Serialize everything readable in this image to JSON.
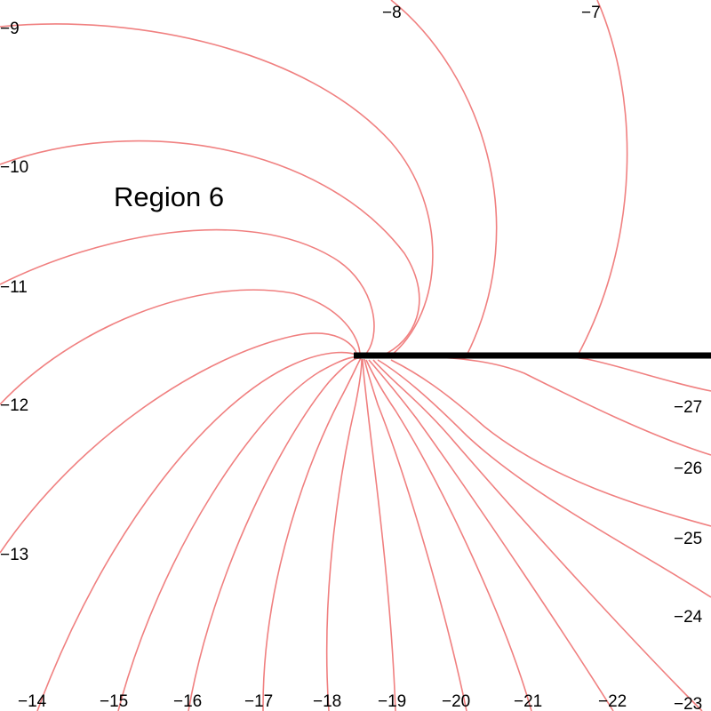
{
  "diagram": {
    "region_label": "Region 6",
    "curve_color": "#f08080",
    "cut_color": "#000000",
    "labels": [
      {
        "id": "c-9",
        "text": "−9"
      },
      {
        "id": "c-8",
        "text": "−8"
      },
      {
        "id": "c-7",
        "text": "−7"
      },
      {
        "id": "c-10",
        "text": "−10"
      },
      {
        "id": "c-11",
        "text": "−11"
      },
      {
        "id": "c-12",
        "text": "−12"
      },
      {
        "id": "c-13",
        "text": "−13"
      },
      {
        "id": "c-14",
        "text": "−14"
      },
      {
        "id": "c-15",
        "text": "−15"
      },
      {
        "id": "c-16",
        "text": "−16"
      },
      {
        "id": "c-17",
        "text": "−17"
      },
      {
        "id": "c-18",
        "text": "−18"
      },
      {
        "id": "c-19",
        "text": "−19"
      },
      {
        "id": "c-20",
        "text": "−20"
      },
      {
        "id": "c-21",
        "text": "−21"
      },
      {
        "id": "c-22",
        "text": "−22"
      },
      {
        "id": "c-23",
        "text": "−23"
      },
      {
        "id": "c-24",
        "text": "−24"
      },
      {
        "id": "c-25",
        "text": "−25"
      },
      {
        "id": "c-26",
        "text": "−26"
      },
      {
        "id": "c-27",
        "text": "−27"
      }
    ]
  }
}
